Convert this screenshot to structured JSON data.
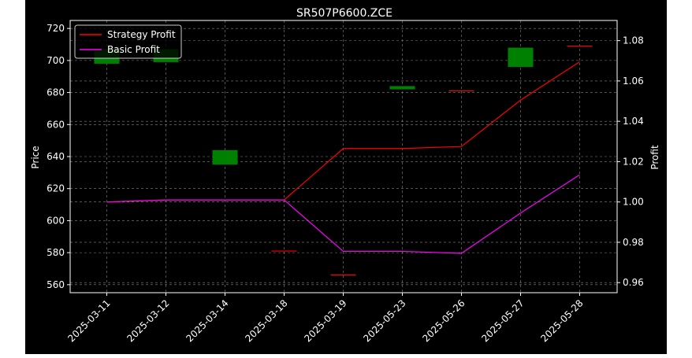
{
  "chart_data": {
    "type": "candlestick+line",
    "title": "SR507P6600.ZCE",
    "xlabel": "",
    "ylabel": "Price",
    "y2label": "Profit",
    "categories": [
      "2025-03-11",
      "2025-03-12",
      "2025-03-14",
      "2025-03-18",
      "2025-03-19",
      "2025-05-23",
      "2025-05-26",
      "2025-05-27",
      "2025-05-28"
    ],
    "ylim": [
      555,
      725
    ],
    "yticks": [
      560,
      580,
      600,
      620,
      640,
      660,
      680,
      700,
      720
    ],
    "y2lim": [
      0.955,
      1.09
    ],
    "y2ticks": [
      0.96,
      0.98,
      1.0,
      1.02,
      1.04,
      1.06,
      1.08
    ],
    "y2tick_labels": [
      "0.96",
      "0.98",
      "1.00",
      "1.02",
      "1.04",
      "1.06",
      "1.08"
    ],
    "candles": [
      {
        "date": "2025-03-11",
        "open": 698,
        "close": 707,
        "high": 707,
        "low": 698,
        "color": "#008000"
      },
      {
        "date": "2025-03-12",
        "open": 699,
        "close": 707,
        "high": 707,
        "low": 699,
        "color": "#008000"
      },
      {
        "date": "2025-03-14",
        "open": 635,
        "close": 644,
        "high": 644,
        "low": 635,
        "color": "#008000"
      },
      {
        "date": "2025-03-18",
        "open": 581,
        "close": 581,
        "high": 581,
        "low": 581,
        "color": "#ff0000"
      },
      {
        "date": "2025-03-19",
        "open": 566,
        "close": 566,
        "high": 566,
        "low": 566,
        "color": "#ff0000"
      },
      {
        "date": "2025-05-23",
        "open": 682,
        "close": 684,
        "high": 684,
        "low": 682,
        "color": "#008000"
      },
      {
        "date": "2025-05-26",
        "open": 681,
        "close": 681,
        "high": 681,
        "low": 681,
        "color": "#ff0000"
      },
      {
        "date": "2025-05-27",
        "open": 696,
        "close": 708,
        "high": 708,
        "low": 696,
        "color": "#008000"
      },
      {
        "date": "2025-05-28",
        "open": 709,
        "close": 709,
        "high": 709,
        "low": 709,
        "color": "#ff0000"
      }
    ],
    "series": [
      {
        "name": "Strategy Profit",
        "color": "#ff0000",
        "values": [
          1.0,
          1.001,
          1.001,
          1.001,
          1.0265,
          1.0265,
          1.0275,
          1.0505,
          1.0695
        ]
      },
      {
        "name": "Basic Profit",
        "color": "#ff00ff",
        "values": [
          1.0,
          1.001,
          1.001,
          1.001,
          0.9755,
          0.9755,
          0.9745,
          0.9945,
          1.0135
        ]
      }
    ],
    "grid": true,
    "legend": "top-left"
  }
}
